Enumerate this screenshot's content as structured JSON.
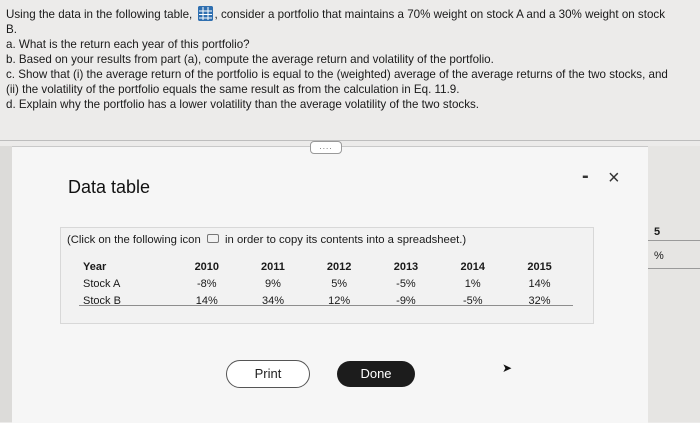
{
  "question": {
    "intro_before_icon": "Using the data in the following table,",
    "table_icon": "table-grid-icon",
    "intro_after_icon": ", consider a portfolio that maintains a 70% weight on stock A and a 30% weight on stock",
    "intro_cont": "B.",
    "a": "a. What is the return each year of this portfolio?",
    "b": "b. Based on your results from part (a), compute the average return and volatility of the portfolio.",
    "c1": "c. Show that (i) the average return of the portfolio is equal to the (weighted) average of the average returns of the two stocks, and",
    "c2": "(ii) the volatility of the portfolio equals the same result as from the calculation in Eq. 11.9.",
    "d": "d. Explain why the portfolio has a lower volatility than the average volatility of the two stocks."
  },
  "background": {
    "right_top": "5",
    "right_bottom": "%"
  },
  "dialog": {
    "drag_handle": "....",
    "title": "Data table",
    "minimize_label": "-",
    "close_label": "×",
    "note_before": "(Click on the following icon",
    "copy_icon": "copy-icon",
    "note_after": "in order to copy its contents into a spreadsheet.)",
    "table": {
      "headers": [
        "Year",
        "2010",
        "2011",
        "2012",
        "2013",
        "2014",
        "2015"
      ],
      "rows": [
        [
          "Stock A",
          "-8%",
          "9%",
          "5%",
          "-5%",
          "1%",
          "14%"
        ],
        [
          "Stock B",
          "14%",
          "34%",
          "12%",
          "-9%",
          "-5%",
          "32%"
        ]
      ]
    },
    "print_label": "Print",
    "done_label": "Done"
  }
}
